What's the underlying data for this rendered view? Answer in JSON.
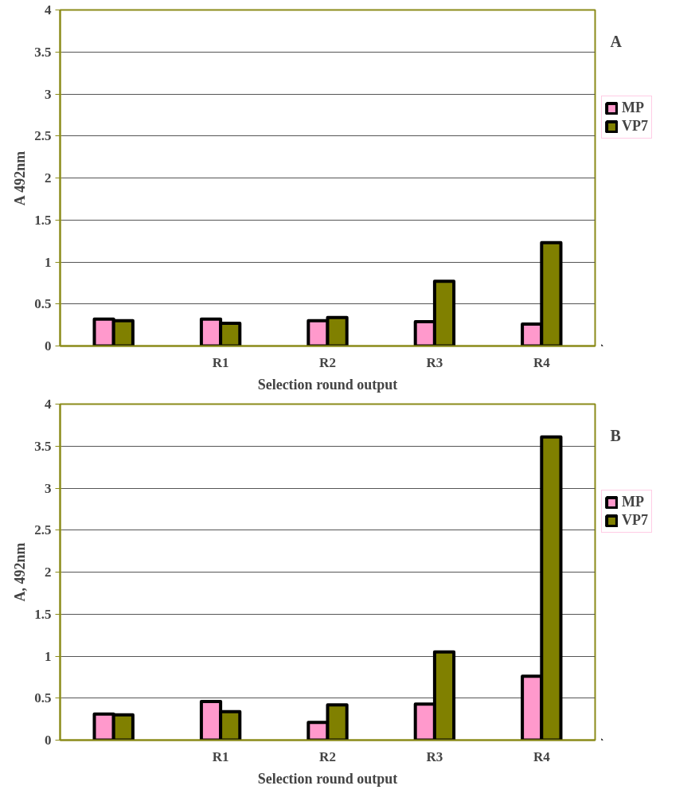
{
  "chart_data": [
    {
      "type": "bar",
      "xlabel": "Selection round output",
      "ylabel": "A 492nm",
      "categories": [
        null,
        "R1",
        "R2",
        "R3",
        "R4"
      ],
      "series": [
        {
          "name": "MP",
          "color": "#ff99cc",
          "values": [
            0.32,
            0.32,
            0.3,
            0.29,
            0.26
          ]
        },
        {
          "name": "VP7",
          "color": "#808000",
          "values": [
            0.3,
            0.27,
            0.34,
            0.77,
            1.23
          ]
        }
      ],
      "ylim": [
        0,
        4
      ],
      "yticks": [
        0,
        0.5,
        1,
        1.5,
        2,
        2.5,
        3,
        3.5,
        4
      ],
      "grid": "y",
      "legend": "right",
      "annotations": [
        "A"
      ]
    },
    {
      "type": "bar",
      "xlabel": "Selection round output",
      "ylabel": "A, 492nm",
      "categories": [
        null,
        "R1",
        "R2",
        "R3",
        "R4"
      ],
      "series": [
        {
          "name": "MP",
          "color": "#ff99cc",
          "values": [
            0.31,
            0.46,
            0.21,
            0.43,
            0.76
          ]
        },
        {
          "name": "VP7",
          "color": "#808000",
          "values": [
            0.3,
            0.34,
            0.42,
            1.05,
            3.61
          ]
        }
      ],
      "ylim": [
        0,
        4
      ],
      "yticks": [
        0,
        0.5,
        1,
        1.5,
        2,
        2.5,
        3,
        3.5,
        4
      ],
      "grid": "y",
      "legend": "right",
      "annotations": [
        "B"
      ]
    }
  ]
}
